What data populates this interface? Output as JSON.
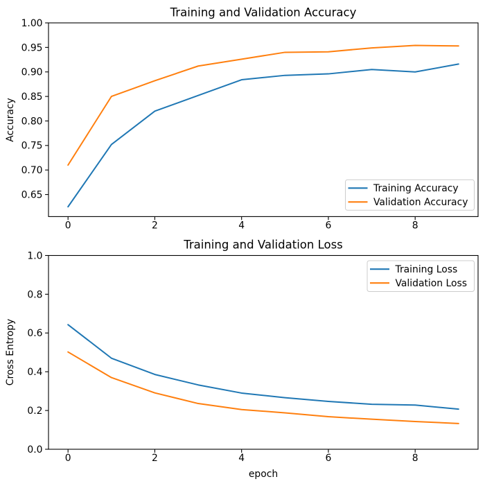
{
  "figure": {
    "background": "#ffffff",
    "text_color": "#000000",
    "spine_color": "#000000",
    "legend_border_color": "#cccccc",
    "legend_fill_color": "#ffffff"
  },
  "chart_data": [
    {
      "type": "line",
      "title": "Training and Validation Accuracy",
      "xlabel": "",
      "ylabel": "Accuracy",
      "x": [
        0,
        1,
        2,
        3,
        4,
        5,
        6,
        7,
        8,
        9
      ],
      "series": [
        {
          "name": "Training Accuracy",
          "color": "#1f77b4",
          "values": [
            0.625,
            0.752,
            0.82,
            0.852,
            0.884,
            0.893,
            0.896,
            0.905,
            0.9,
            0.916
          ]
        },
        {
          "name": "Validation Accuracy",
          "color": "#ff7f0e",
          "values": [
            0.71,
            0.85,
            0.882,
            0.912,
            0.926,
            0.94,
            0.941,
            0.949,
            0.954,
            0.953
          ]
        }
      ],
      "xlim": [
        -0.45,
        9.45
      ],
      "ylim": [
        0.605,
        1.0
      ],
      "xticks": {
        "values": [
          0,
          2,
          4,
          6,
          8
        ],
        "labels": [
          "0",
          "2",
          "4",
          "6",
          "8"
        ]
      },
      "yticks": {
        "values": [
          0.65,
          0.7,
          0.75,
          0.8,
          0.85,
          0.9,
          0.95,
          1.0
        ],
        "labels": [
          "0.65",
          "0.70",
          "0.75",
          "0.80",
          "0.85",
          "0.90",
          "0.95",
          "1.00"
        ]
      },
      "grid": false,
      "legend": {
        "position": "lower right",
        "entries": [
          "Training Accuracy",
          "Validation Accuracy"
        ]
      }
    },
    {
      "type": "line",
      "title": "Training and Validation Loss",
      "xlabel": "epoch",
      "ylabel": "Cross Entropy",
      "x": [
        0,
        1,
        2,
        3,
        4,
        5,
        6,
        7,
        8,
        9
      ],
      "series": [
        {
          "name": "Training Loss",
          "color": "#1f77b4",
          "values": [
            0.643,
            0.47,
            0.386,
            0.332,
            0.29,
            0.266,
            0.247,
            0.232,
            0.228,
            0.207
          ]
        },
        {
          "name": "Validation Loss",
          "color": "#ff7f0e",
          "values": [
            0.502,
            0.37,
            0.291,
            0.236,
            0.205,
            0.188,
            0.168,
            0.155,
            0.143,
            0.133
          ]
        }
      ],
      "xlim": [
        -0.45,
        9.45
      ],
      "ylim": [
        0.0,
        1.0
      ],
      "xticks": {
        "values": [
          0,
          2,
          4,
          6,
          8
        ],
        "labels": [
          "0",
          "2",
          "4",
          "6",
          "8"
        ]
      },
      "yticks": {
        "values": [
          0.0,
          0.2,
          0.4,
          0.6,
          0.8,
          1.0
        ],
        "labels": [
          "0.0",
          "0.2",
          "0.4",
          "0.6",
          "0.8",
          "1.0"
        ]
      },
      "grid": false,
      "legend": {
        "position": "upper right",
        "entries": [
          "Training Loss",
          "Validation Loss"
        ]
      }
    }
  ]
}
